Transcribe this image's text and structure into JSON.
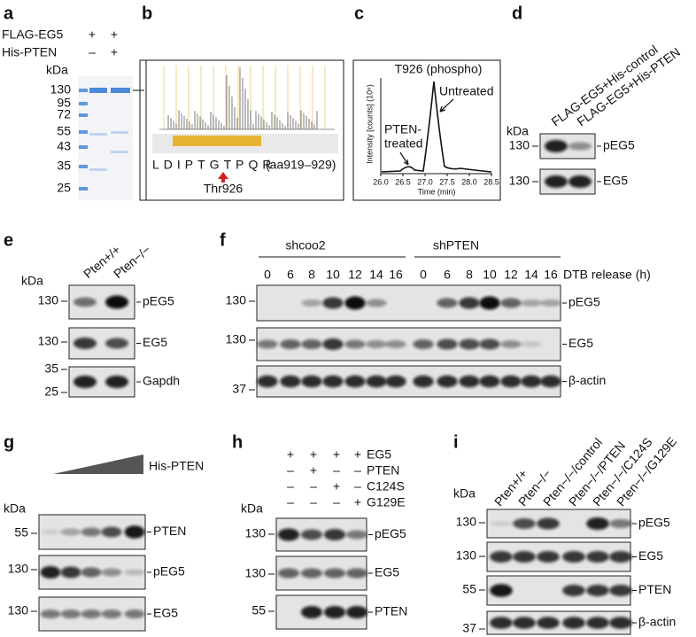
{
  "panels": {
    "a": {
      "label": "a",
      "rows": [
        {
          "name": "FLAG-EG5",
          "lanes": [
            "+",
            "+"
          ]
        },
        {
          "name": "His-PTEN",
          "lanes": [
            "–",
            "+"
          ]
        }
      ],
      "unit": "kDa",
      "markers": [
        130,
        95,
        72,
        55,
        43,
        35,
        25
      ]
    },
    "b": {
      "label": "b",
      "sequence": "LDIPTGTPQR",
      "range": "(aa919–929)",
      "site": "Thr926"
    },
    "c": {
      "label": "c",
      "title": "T926 (phospho)",
      "y_label": "Intensity [counts] (10⁶)",
      "x_label": "Time (min)",
      "x_ticks": [
        "26.0",
        "26.5",
        "27.0",
        "27.5",
        "28.0",
        "28.5"
      ],
      "peaks": [
        [
          "Untreated"
        ],
        [
          "PTEN-",
          "treated"
        ]
      ]
    },
    "d": {
      "label": "d",
      "lanes": [
        "FLAG-EG5+His-control",
        "FLAG-EG5+His-PTEN"
      ],
      "unit": "kDa",
      "blots": [
        {
          "markers": [
            130
          ],
          "name": "pEG5"
        },
        {
          "markers": [
            130
          ],
          "name": "EG5"
        }
      ]
    },
    "e": {
      "label": "e",
      "lanes": [
        "Pten+/+",
        "Pten−/−"
      ],
      "unit": "kDa",
      "blots": [
        {
          "markers": [
            130
          ],
          "name": "pEG5"
        },
        {
          "markers": [
            130
          ],
          "name": "EG5"
        },
        {
          "markers": [
            35,
            25
          ],
          "name": "Gapdh"
        }
      ]
    },
    "f": {
      "label": "f",
      "groups": [
        {
          "name": "shcoo2",
          "times": [
            0,
            6,
            8,
            10,
            12,
            14,
            16
          ]
        },
        {
          "name": "shPTEN",
          "times": [
            0,
            6,
            8,
            10,
            12,
            14,
            16
          ]
        }
      ],
      "x_label": "DTB release (h)",
      "blots": [
        {
          "markers": [
            130
          ],
          "name": "pEG5"
        },
        {
          "markers": [
            130
          ],
          "name": "EG5"
        },
        {
          "markers": [
            37
          ],
          "name": "β-actin"
        }
      ]
    },
    "g": {
      "label": "g",
      "wedge_label": "His-PTEN",
      "unit": "kDa",
      "blots": [
        {
          "markers": [
            55
          ],
          "name": "PTEN"
        },
        {
          "markers": [
            130
          ],
          "name": "pEG5"
        },
        {
          "markers": [
            130
          ],
          "name": "EG5"
        }
      ]
    },
    "h": {
      "label": "h",
      "rows": [
        {
          "name": "EG5",
          "lanes": [
            "+",
            "+",
            "+",
            "+"
          ]
        },
        {
          "name": "PTEN",
          "lanes": [
            "–",
            "+",
            "–",
            "–"
          ]
        },
        {
          "name": "C124S",
          "lanes": [
            "–",
            "–",
            "+",
            "–"
          ]
        },
        {
          "name": "G129E",
          "lanes": [
            "–",
            "–",
            "–",
            "+"
          ]
        }
      ],
      "unit": "kDa",
      "blots": [
        {
          "markers": [
            130
          ],
          "name": "pEG5"
        },
        {
          "markers": [
            130
          ],
          "name": "EG5"
        },
        {
          "markers": [
            55
          ],
          "name": "PTEN"
        }
      ]
    },
    "i": {
      "label": "i",
      "lanes": [
        "Pten+/+",
        "Pten−/−",
        "Pten−/−/control",
        "Pten−/−/PTEN",
        "Pten−/−/C124S",
        "Pten−/−/G129E"
      ],
      "unit": "kDa",
      "blots": [
        {
          "markers": [
            130
          ],
          "name": "pEG5"
        },
        {
          "markers": [
            130
          ],
          "name": "EG5"
        },
        {
          "markers": [
            55
          ],
          "name": "PTEN"
        },
        {
          "markers": [
            37
          ],
          "name": "β-actin"
        }
      ]
    }
  }
}
